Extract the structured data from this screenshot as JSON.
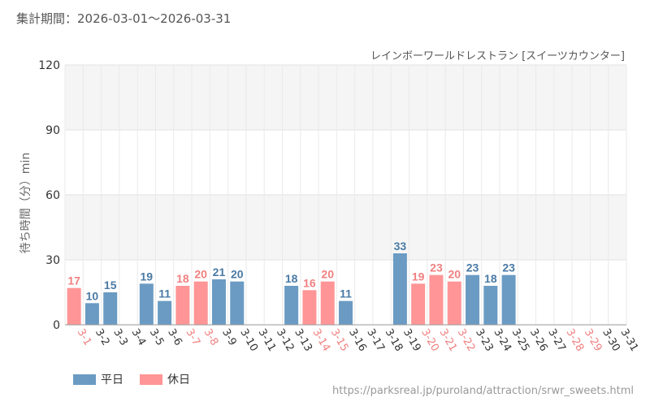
{
  "header": {
    "period_label": "集計期間：2026-03-01〜2026-03-31",
    "attraction_name": "レインボーワールドレストラン [スイーツカウンター]"
  },
  "legend": [
    {
      "label": "平日",
      "color": "#6b9bc3"
    },
    {
      "label": "休日",
      "color": "#ff9596"
    }
  ],
  "source_url": "https://parksreal.jp/puroland/attraction/srwr_sweets.html",
  "chart_data": {
    "type": "bar",
    "ylabel": "待ち時間（分）min",
    "ylim": [
      0,
      120
    ],
    "yticks": [
      0,
      30,
      60,
      90,
      120
    ],
    "grid": true,
    "legend_position": "bottom-left",
    "colors": {
      "weekday": "#6b9bc3",
      "holiday": "#ff9596",
      "weekday_label": "#4a7aa5",
      "holiday_label": "#f08080",
      "weekday_tick": "#333333"
    },
    "categories": [
      "3-1",
      "3-2",
      "3-3",
      "3-4",
      "3-5",
      "3-6",
      "3-7",
      "3-8",
      "3-9",
      "3-10",
      "3-11",
      "3-12",
      "3-13",
      "3-14",
      "3-15",
      "3-16",
      "3-17",
      "3-18",
      "3-19",
      "3-20",
      "3-21",
      "3-22",
      "3-23",
      "3-24",
      "3-25",
      "3-26",
      "3-27",
      "3-28",
      "3-29",
      "3-30",
      "3-31"
    ],
    "holiday": [
      true,
      false,
      false,
      false,
      false,
      false,
      true,
      true,
      false,
      false,
      false,
      false,
      false,
      true,
      true,
      false,
      false,
      false,
      false,
      true,
      true,
      true,
      false,
      false,
      false,
      false,
      false,
      true,
      true,
      false,
      false
    ],
    "values": [
      17,
      10,
      15,
      null,
      19,
      11,
      18,
      20,
      21,
      20,
      null,
      null,
      18,
      16,
      20,
      11,
      null,
      null,
      33,
      19,
      23,
      20,
      23,
      18,
      23,
      null,
      null,
      null,
      null,
      null,
      null
    ]
  }
}
